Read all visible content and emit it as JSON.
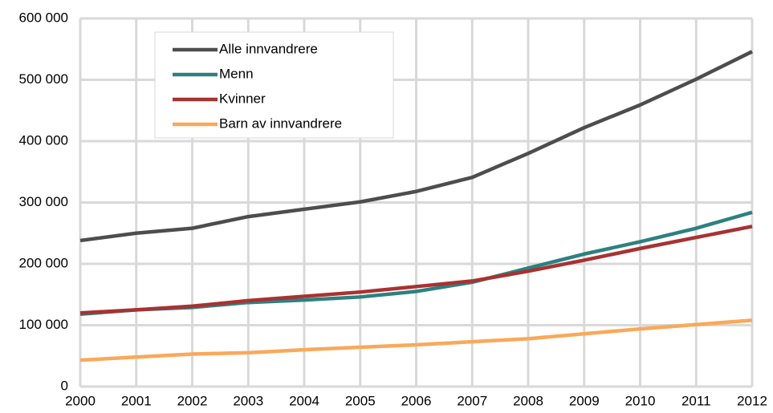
{
  "chart_data": {
    "type": "line",
    "x": [
      2000,
      2001,
      2002,
      2003,
      2004,
      2005,
      2006,
      2007,
      2008,
      2009,
      2010,
      2011,
      2012
    ],
    "series": [
      {
        "name": "Alle innvandrere",
        "color": "#4d4d4d",
        "values": [
          238000,
          250000,
          258000,
          277000,
          289000,
          301000,
          318000,
          341000,
          380000,
          422000,
          459000,
          501000,
          546000
        ]
      },
      {
        "name": "Menn",
        "color": "#2e8080",
        "values": [
          118000,
          125000,
          129000,
          137000,
          141000,
          146000,
          155000,
          170000,
          193000,
          216000,
          236000,
          258000,
          284000
        ]
      },
      {
        "name": "Kvinner",
        "color": "#a83232",
        "values": [
          120000,
          125000,
          131000,
          140000,
          147000,
          154000,
          163000,
          172000,
          188000,
          206000,
          225000,
          243000,
          261000
        ]
      },
      {
        "name": "Barn av innvandrere",
        "color": "#f9a95a",
        "values": [
          43000,
          48000,
          53000,
          55000,
          60000,
          64000,
          68000,
          73000,
          78000,
          86000,
          94000,
          101000,
          108000
        ]
      }
    ],
    "xlim": [
      2000,
      2012
    ],
    "xticks": [
      2000,
      2001,
      2002,
      2003,
      2004,
      2005,
      2006,
      2007,
      2008,
      2009,
      2010,
      2011,
      2012
    ],
    "ylim": [
      0,
      600000
    ],
    "yticks": [
      0,
      {
        "value": 100000,
        "label": "100 000"
      },
      {
        "value": 200000,
        "label": "200 000"
      },
      {
        "value": 300000,
        "label": "300 000"
      },
      {
        "value": 400000,
        "label": "400 000"
      },
      {
        "value": 500000,
        "label": "500 000"
      },
      {
        "value": 600000,
        "label": "600 000"
      }
    ],
    "grid": true,
    "legend": "upper left"
  }
}
